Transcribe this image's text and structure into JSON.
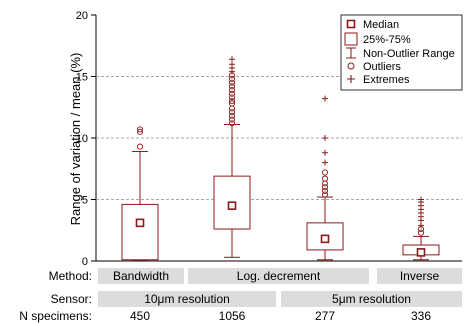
{
  "chart_data": {
    "type": "box",
    "ylabel": "Range of variation / mean (%)",
    "ylim": [
      0,
      20
    ],
    "yticks": [
      0,
      5,
      10,
      15,
      20
    ],
    "grid": "horizontal dashed at 5, 10, 15",
    "legend_position": "top-right",
    "legend": {
      "median": "Median",
      "box": "25%-75%",
      "whisker": "Non-Outlier Range",
      "outlier": "Outliers",
      "extreme": "Extremes"
    },
    "colors": {
      "series": "#8b1a1a",
      "band": "#dcdcdc"
    },
    "groups": [
      {
        "median": 3.1,
        "q1": 0.1,
        "q3": 4.6,
        "whisker_low": 0.1,
        "whisker_high": 8.9,
        "outliers": [
          9.3,
          10.5,
          10.7
        ],
        "extremes": []
      },
      {
        "median": 4.5,
        "q1": 2.6,
        "q3": 6.9,
        "whisker_low": 0.3,
        "whisker_high": 11.1,
        "outliers": [
          11.2,
          11.5,
          11.8,
          12.1,
          12.4,
          12.8,
          13.0,
          13.3,
          13.6,
          13.9,
          14.2,
          14.5,
          14.8,
          15.1
        ],
        "extremes": [
          15.4,
          15.7,
          16.0,
          16.4
        ]
      },
      {
        "median": 1.8,
        "q1": 0.9,
        "q3": 3.1,
        "whisker_low": 0.1,
        "whisker_high": 5.2,
        "outliers": [
          5.4,
          5.7,
          6.0,
          6.3,
          6.7,
          7.2
        ],
        "extremes": [
          8.0,
          8.8,
          10.0,
          13.2
        ]
      },
      {
        "median": 0.7,
        "q1": 0.5,
        "q3": 1.3,
        "whisker_low": 0.1,
        "whisker_high": 2.0,
        "outliers": [
          2.3,
          2.6
        ],
        "extremes": [
          2.9,
          3.3,
          3.6,
          3.9,
          4.2,
          4.5,
          4.8,
          5.0
        ]
      }
    ],
    "table": {
      "rows": [
        {
          "label": "Method:",
          "bands": [
            {
              "text": "Bandwidth",
              "span": [
                0,
                0
              ]
            },
            {
              "text": "Log. decrement",
              "span": [
                1,
                2
              ]
            },
            {
              "text": "Inverse",
              "span": [
                3,
                3
              ]
            }
          ]
        },
        {
          "label": "Sensor:",
          "bands": [
            {
              "text": "10μm resolution",
              "span": [
                0,
                1
              ]
            },
            {
              "text": "5μm resolution",
              "span": [
                2,
                3
              ]
            }
          ]
        }
      ],
      "n_label": "N specimens:",
      "n_values": [
        "450",
        "1056",
        "277",
        "336"
      ]
    }
  }
}
